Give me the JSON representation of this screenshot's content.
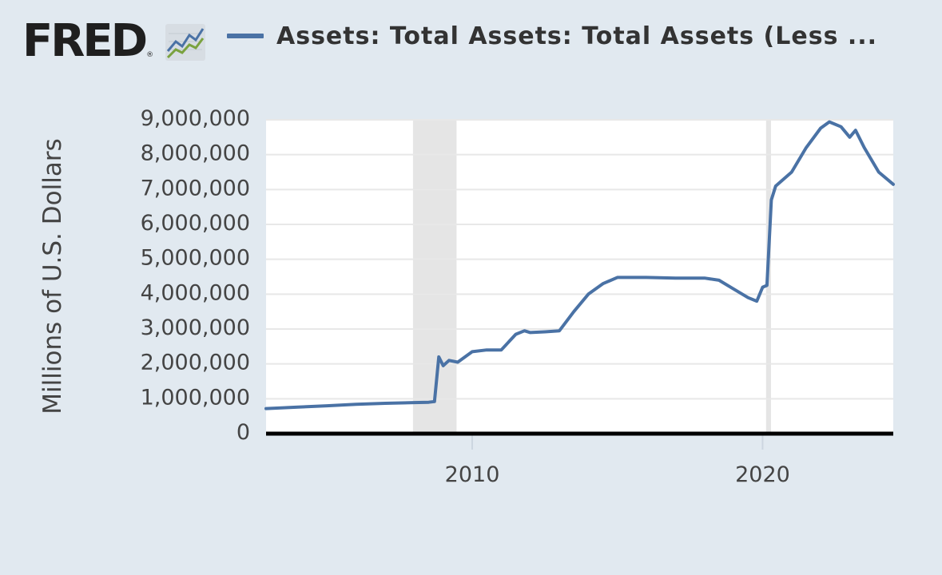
{
  "header": {
    "logo_text": "FRED",
    "logo_mark": "®",
    "logo_icon": "line-chart-icon",
    "series_label": "Assets: Total Assets: Total Assets (Less ..."
  },
  "colors": {
    "background": "#e1e9f0",
    "plot_background": "#ffffff",
    "series_line": "#4a72a5",
    "recession_shade": "#e5e5e5",
    "grid": "#e8e8e8"
  },
  "chart_data": {
    "type": "line",
    "title": "",
    "xlabel": "",
    "ylabel": "Millions of U.S. Dollars",
    "xlim": [
      2002.9,
      2024.5
    ],
    "ylim": [
      0,
      9000000
    ],
    "x_ticks": [
      2010,
      2020
    ],
    "x_tick_labels": [
      "2010",
      "2020"
    ],
    "y_ticks": [
      0,
      1000000,
      2000000,
      3000000,
      4000000,
      5000000,
      6000000,
      7000000,
      8000000,
      9000000
    ],
    "y_tick_labels": [
      "0",
      "1,000,000",
      "2,000,000",
      "3,000,000",
      "4,000,000",
      "5,000,000",
      "6,000,000",
      "7,000,000",
      "8,000,000",
      "9,000,000"
    ],
    "grid": true,
    "legend": "top",
    "recessions": [
      [
        2007.96,
        2009.46
      ],
      [
        2020.12,
        2020.29
      ]
    ],
    "series": [
      {
        "name": "Assets: Total Assets: Total Assets (Less ...",
        "x": [
          2002.9,
          2004,
          2005,
          2006,
          2007,
          2008,
          2008.5,
          2008.7,
          2008.85,
          2009,
          2009.2,
          2009.5,
          2010,
          2010.5,
          2011,
          2011.5,
          2011.8,
          2012,
          2012.5,
          2013,
          2013.5,
          2014,
          2014.5,
          2015,
          2016,
          2017,
          2018,
          2018.5,
          2019,
          2019.5,
          2019.8,
          2020,
          2020.15,
          2020.3,
          2020.45,
          2021,
          2021.5,
          2022,
          2022.3,
          2022.7,
          2023,
          2023.2,
          2023.5,
          2024,
          2024.5
        ],
        "values": [
          720000,
          760000,
          800000,
          840000,
          870000,
          890000,
          900000,
          920000,
          2200000,
          1950000,
          2100000,
          2050000,
          2350000,
          2400000,
          2400000,
          2850000,
          2950000,
          2900000,
          2920000,
          2950000,
          3500000,
          4000000,
          4300000,
          4480000,
          4480000,
          4460000,
          4460000,
          4400000,
          4150000,
          3900000,
          3800000,
          4200000,
          4250000,
          6700000,
          7100000,
          7500000,
          8200000,
          8760000,
          8940000,
          8800000,
          8500000,
          8700000,
          8200000,
          7500000,
          7150000
        ]
      }
    ]
  }
}
